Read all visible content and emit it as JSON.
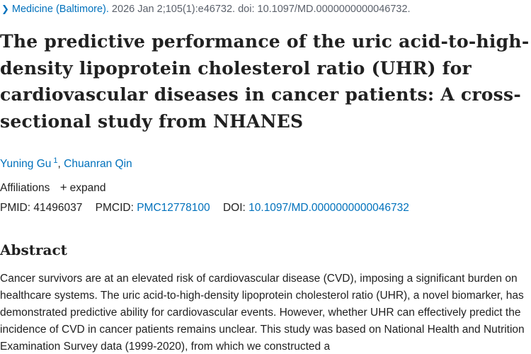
{
  "citation": {
    "journal": "Medicine (Baltimore).",
    "details": " 2026 Jan 2;105(1):e46732. doi: 10.1097/MD.0000000000046732."
  },
  "title": "The predictive performance of the uric acid-to-high-density lipoprotein cholesterol ratio (UHR) for cardiovascular diseases in cancer patients: A cross-sectional study from NHANES",
  "authors": [
    {
      "name": "Yuning Gu",
      "affiliation_ref": "1"
    },
    {
      "name": "Chuanran Qin"
    }
  ],
  "affiliations": {
    "label": "Affiliations",
    "expand_label": "expand"
  },
  "identifiers": {
    "pmid_label": "PMID:",
    "pmid": "41496037",
    "pmcid_label": "PMCID:",
    "pmcid": "PMC12778100",
    "doi_label": "DOI:",
    "doi": "10.1097/MD.0000000000046732"
  },
  "abstract": {
    "heading": "Abstract",
    "text": "Cancer survivors are at an elevated risk of cardiovascular disease (CVD), imposing a significant burden on healthcare systems. The uric acid-to-high-density lipoprotein cholesterol ratio (UHR), a novel biomarker, has demonstrated predictive ability for cardiovascular events. However, whether UHR can effectively predict the incidence of CVD in cancer patients remains unclear. This study was based on National Health and Nutrition Examination Survey data (1999-2020), from which we constructed a"
  },
  "icons": {
    "chevron": "chevron-right-icon",
    "plus": "plus-icon"
  },
  "colors": {
    "link": "#0071bc",
    "text": "#212121",
    "muted": "#5b616b"
  }
}
